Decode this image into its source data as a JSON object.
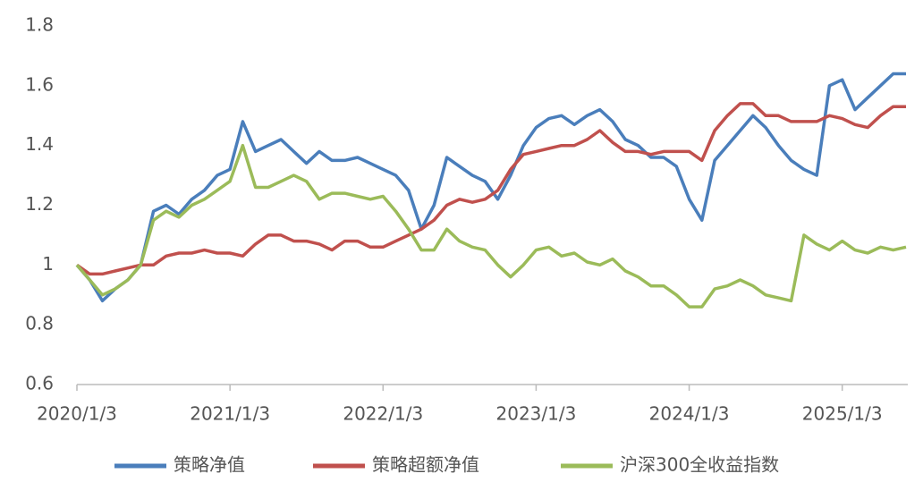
{
  "chart_data": {
    "type": "line",
    "categories": [
      "2020/1/3",
      null,
      null,
      null,
      null,
      null,
      null,
      null,
      null,
      null,
      null,
      null,
      "2021/1/3",
      null,
      null,
      null,
      null,
      null,
      null,
      null,
      null,
      null,
      null,
      null,
      "2022/1/3",
      null,
      null,
      null,
      null,
      null,
      null,
      null,
      null,
      null,
      null,
      null,
      "2023/1/3",
      null,
      null,
      null,
      null,
      null,
      null,
      null,
      null,
      null,
      null,
      null,
      "2024/1/3",
      null,
      null,
      null,
      null,
      null,
      null,
      null,
      null,
      null,
      null,
      null,
      "2025/1/3",
      null,
      null,
      null,
      null,
      null
    ],
    "series": [
      {
        "name": "策略净值",
        "color": "#4a7ebb",
        "values": [
          1.0,
          0.95,
          0.88,
          0.92,
          0.95,
          1.0,
          1.18,
          1.2,
          1.17,
          1.22,
          1.25,
          1.3,
          1.32,
          1.48,
          1.38,
          1.4,
          1.42,
          1.38,
          1.34,
          1.38,
          1.35,
          1.35,
          1.36,
          1.34,
          1.32,
          1.3,
          1.25,
          1.12,
          1.2,
          1.36,
          1.33,
          1.3,
          1.28,
          1.22,
          1.3,
          1.4,
          1.46,
          1.49,
          1.5,
          1.47,
          1.5,
          1.52,
          1.48,
          1.42,
          1.4,
          1.36,
          1.36,
          1.33,
          1.22,
          1.15,
          1.35,
          1.4,
          1.45,
          1.5,
          1.46,
          1.4,
          1.35,
          1.32,
          1.3,
          1.6,
          1.62,
          1.52,
          1.56,
          1.6,
          1.64,
          1.64
        ]
      },
      {
        "name": "策略超额净值",
        "color": "#c0504d",
        "values": [
          1.0,
          0.97,
          0.97,
          0.98,
          0.99,
          1.0,
          1.0,
          1.03,
          1.04,
          1.04,
          1.05,
          1.04,
          1.04,
          1.03,
          1.07,
          1.1,
          1.1,
          1.08,
          1.08,
          1.07,
          1.05,
          1.08,
          1.08,
          1.06,
          1.06,
          1.08,
          1.1,
          1.12,
          1.15,
          1.2,
          1.22,
          1.21,
          1.22,
          1.25,
          1.32,
          1.37,
          1.38,
          1.39,
          1.4,
          1.4,
          1.42,
          1.45,
          1.41,
          1.38,
          1.38,
          1.37,
          1.38,
          1.38,
          1.38,
          1.35,
          1.45,
          1.5,
          1.54,
          1.54,
          1.5,
          1.5,
          1.48,
          1.48,
          1.48,
          1.5,
          1.49,
          1.47,
          1.46,
          1.5,
          1.53,
          1.53
        ]
      },
      {
        "name": "沪深300全收益指数",
        "color": "#9bbb59",
        "values": [
          1.0,
          0.95,
          0.9,
          0.92,
          0.95,
          1.0,
          1.15,
          1.18,
          1.16,
          1.2,
          1.22,
          1.25,
          1.28,
          1.4,
          1.26,
          1.26,
          1.28,
          1.3,
          1.28,
          1.22,
          1.24,
          1.24,
          1.23,
          1.22,
          1.23,
          1.18,
          1.12,
          1.05,
          1.05,
          1.12,
          1.08,
          1.06,
          1.05,
          1.0,
          0.96,
          1.0,
          1.05,
          1.06,
          1.03,
          1.04,
          1.01,
          1.0,
          1.02,
          0.98,
          0.96,
          0.93,
          0.93,
          0.9,
          0.86,
          0.86,
          0.92,
          0.93,
          0.95,
          0.93,
          0.9,
          0.89,
          0.88,
          1.1,
          1.07,
          1.05,
          1.08,
          1.05,
          1.04,
          1.06,
          1.05,
          1.06
        ]
      }
    ],
    "ylim": [
      0.6,
      1.8
    ],
    "yticks": [
      0.6,
      0.8,
      1,
      1.2,
      1.4,
      1.6,
      1.8
    ]
  }
}
